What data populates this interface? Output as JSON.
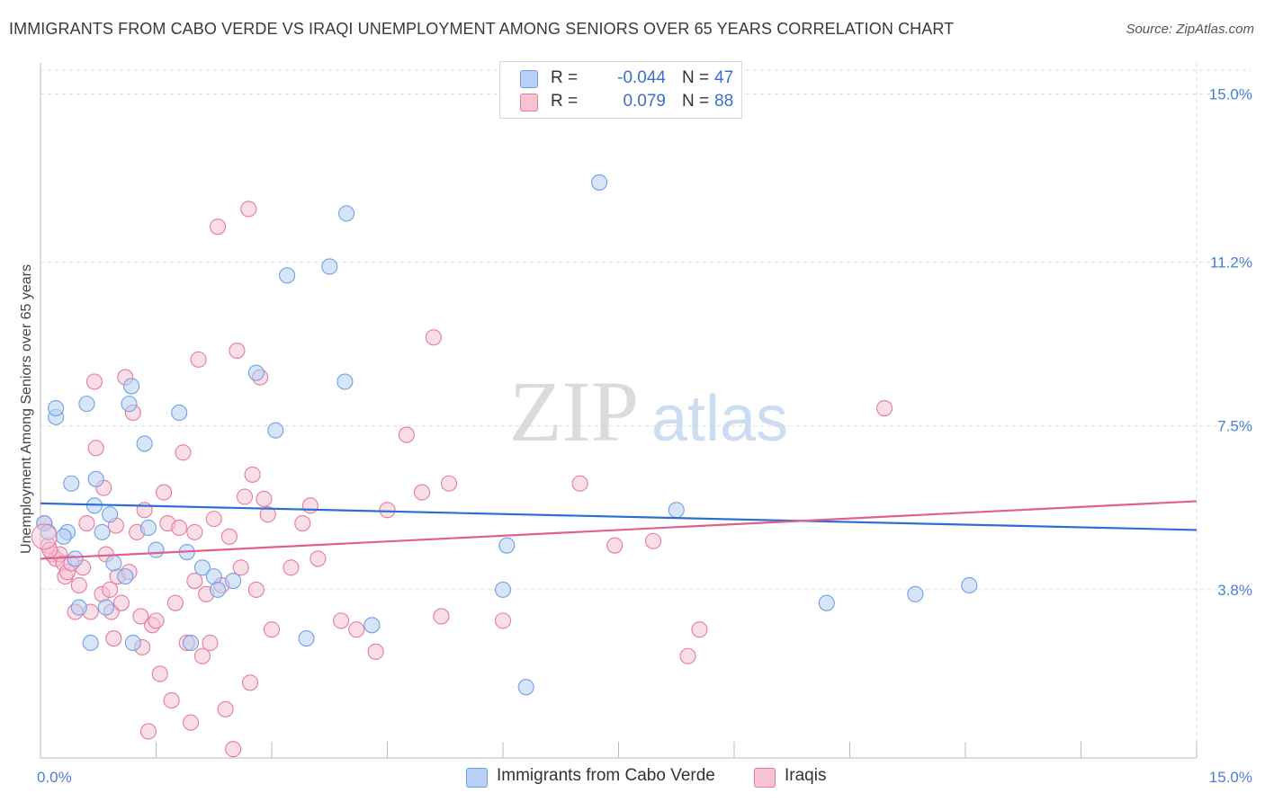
{
  "title": "IMMIGRANTS FROM CABO VERDE VS IRAQI UNEMPLOYMENT AMONG SENIORS OVER 65 YEARS CORRELATION CHART",
  "source": "Source: ZipAtlas.com",
  "watermark": {
    "zip": "ZIP",
    "atlas": "atlas"
  },
  "legend_top": [
    {
      "swatch_color": "#aac8f5",
      "r_label": "R =",
      "r_value": "-0.044",
      "n_label": "N =",
      "n_value": "47"
    },
    {
      "swatch_color": "#f5b8cc",
      "r_label": "R =",
      "r_value": "0.079",
      "n_label": "N =",
      "n_value": "88"
    }
  ],
  "legend_bottom": [
    {
      "label": "Immigrants from Cabo Verde",
      "color": "#aac8f5"
    },
    {
      "label": "Iraqis",
      "color": "#f5b8cc"
    }
  ],
  "chart_data": {
    "type": "scatter",
    "title": "IMMIGRANTS FROM CABO VERDE VS IRAQI UNEMPLOYMENT AMONG SENIORS OVER 65 YEARS CORRELATION CHART",
    "xlabel": "",
    "ylabel": "Unemployment Among Seniors over 65 years",
    "xlim": [
      0,
      15
    ],
    "ylim": [
      0,
      15.7
    ],
    "x_tick_labels": [
      "0.0%",
      "15.0%"
    ],
    "y_ticks": [
      3.8,
      7.5,
      11.2,
      15.0
    ],
    "y_tick_labels": [
      "3.8%",
      "7.5%",
      "11.2%",
      "15.0%"
    ],
    "grid": true,
    "series": [
      {
        "name": "Immigrants from Cabo Verde",
        "color": "#6fa0e8",
        "fill": "#b7d0f4",
        "trend": [
          [
            0,
            5.75
          ],
          [
            15,
            5.15
          ]
        ],
        "points": [
          [
            0.05,
            5.3
          ],
          [
            0.1,
            5.1
          ],
          [
            0.2,
            7.7
          ],
          [
            0.2,
            7.9
          ],
          [
            0.35,
            5.1
          ],
          [
            0.4,
            6.2
          ],
          [
            0.45,
            4.5
          ],
          [
            0.5,
            3.4
          ],
          [
            0.6,
            8.0
          ],
          [
            0.65,
            2.6
          ],
          [
            0.7,
            5.7
          ],
          [
            0.72,
            6.3
          ],
          [
            0.8,
            5.1
          ],
          [
            0.85,
            3.4
          ],
          [
            0.9,
            5.5
          ],
          [
            0.95,
            4.4
          ],
          [
            1.1,
            4.1
          ],
          [
            1.15,
            8.0
          ],
          [
            1.18,
            8.4
          ],
          [
            1.2,
            2.6
          ],
          [
            1.35,
            7.1
          ],
          [
            1.4,
            5.2
          ],
          [
            1.5,
            4.7
          ],
          [
            1.8,
            7.8
          ],
          [
            1.9,
            4.65
          ],
          [
            1.95,
            2.6
          ],
          [
            2.1,
            4.3
          ],
          [
            2.25,
            4.1
          ],
          [
            2.3,
            3.8
          ],
          [
            2.5,
            4.0
          ],
          [
            2.8,
            8.7
          ],
          [
            3.05,
            7.4
          ],
          [
            3.2,
            10.9
          ],
          [
            3.45,
            2.7
          ],
          [
            3.75,
            11.1
          ],
          [
            3.95,
            8.5
          ],
          [
            3.97,
            12.3
          ],
          [
            4.3,
            3.0
          ],
          [
            6.0,
            3.8
          ],
          [
            6.05,
            4.8
          ],
          [
            6.3,
            1.6
          ],
          [
            7.25,
            13.0
          ],
          [
            8.25,
            5.6
          ],
          [
            10.2,
            3.5
          ],
          [
            11.35,
            3.7
          ],
          [
            12.05,
            3.9
          ],
          [
            0.3,
            5.0
          ]
        ]
      },
      {
        "name": "Iraqis",
        "color": "#e8799c",
        "fill": "#f6c3d3",
        "trend": [
          [
            0,
            4.5
          ],
          [
            15,
            5.8
          ]
        ],
        "points": [
          [
            0.05,
            5.3
          ],
          [
            0.1,
            4.8
          ],
          [
            0.15,
            4.6
          ],
          [
            0.2,
            4.5
          ],
          [
            0.25,
            4.6
          ],
          [
            0.3,
            4.4
          ],
          [
            0.32,
            4.1
          ],
          [
            0.35,
            4.2
          ],
          [
            0.45,
            3.3
          ],
          [
            0.5,
            3.9
          ],
          [
            0.55,
            4.3
          ],
          [
            0.6,
            5.3
          ],
          [
            0.65,
            3.3
          ],
          [
            0.7,
            8.5
          ],
          [
            0.72,
            7.0
          ],
          [
            0.8,
            3.7
          ],
          [
            0.82,
            6.1
          ],
          [
            0.85,
            4.6
          ],
          [
            0.9,
            3.8
          ],
          [
            0.92,
            3.3
          ],
          [
            0.95,
            2.7
          ],
          [
            0.98,
            5.25
          ],
          [
            1.0,
            4.1
          ],
          [
            1.05,
            3.5
          ],
          [
            1.1,
            8.6
          ],
          [
            1.15,
            4.2
          ],
          [
            1.2,
            7.8
          ],
          [
            1.25,
            5.1
          ],
          [
            1.3,
            3.2
          ],
          [
            1.32,
            2.5
          ],
          [
            1.35,
            5.6
          ],
          [
            1.4,
            0.6
          ],
          [
            1.45,
            3.0
          ],
          [
            1.55,
            1.9
          ],
          [
            1.6,
            6.0
          ],
          [
            1.65,
            5.3
          ],
          [
            1.7,
            1.3
          ],
          [
            1.75,
            3.5
          ],
          [
            1.8,
            5.2
          ],
          [
            1.85,
            6.9
          ],
          [
            1.9,
            2.6
          ],
          [
            1.95,
            0.8
          ],
          [
            2.0,
            5.1
          ],
          [
            2.05,
            9.0
          ],
          [
            2.1,
            2.3
          ],
          [
            2.15,
            3.7
          ],
          [
            2.2,
            2.6
          ],
          [
            2.25,
            5.4
          ],
          [
            2.3,
            12.0
          ],
          [
            2.35,
            3.9
          ],
          [
            2.4,
            1.1
          ],
          [
            2.45,
            5.0
          ],
          [
            2.5,
            0.2
          ],
          [
            2.55,
            9.2
          ],
          [
            2.6,
            4.3
          ],
          [
            2.65,
            5.9
          ],
          [
            2.7,
            12.4
          ],
          [
            2.72,
            1.7
          ],
          [
            2.75,
            6.4
          ],
          [
            2.8,
            3.8
          ],
          [
            2.85,
            8.6
          ],
          [
            2.9,
            5.85
          ],
          [
            2.95,
            5.5
          ],
          [
            3.0,
            2.9
          ],
          [
            3.25,
            4.3
          ],
          [
            3.4,
            5.3
          ],
          [
            3.5,
            5.7
          ],
          [
            3.6,
            4.5
          ],
          [
            3.9,
            3.1
          ],
          [
            4.1,
            2.9
          ],
          [
            4.35,
            2.4
          ],
          [
            4.5,
            5.6
          ],
          [
            4.75,
            7.3
          ],
          [
            4.95,
            6.0
          ],
          [
            5.1,
            9.5
          ],
          [
            5.2,
            3.2
          ],
          [
            5.3,
            6.2
          ],
          [
            6.0,
            3.1
          ],
          [
            7.0,
            6.2
          ],
          [
            7.45,
            4.8
          ],
          [
            7.95,
            4.9
          ],
          [
            8.4,
            2.3
          ],
          [
            8.55,
            2.9
          ],
          [
            10.95,
            7.9
          ],
          [
            0.4,
            4.4
          ],
          [
            1.5,
            3.1
          ],
          [
            2.0,
            4.0
          ],
          [
            0.12,
            4.7
          ]
        ]
      }
    ]
  }
}
